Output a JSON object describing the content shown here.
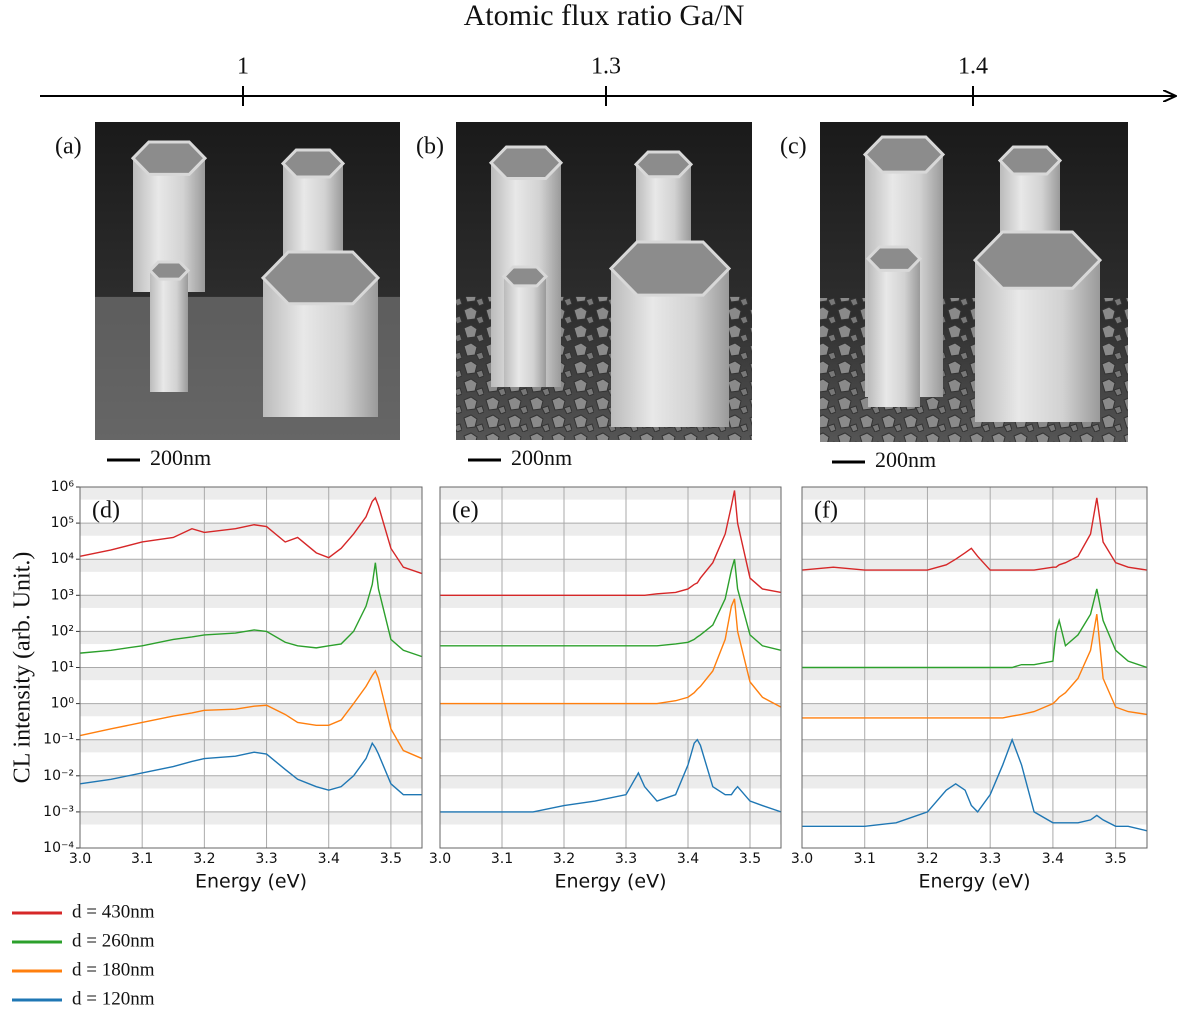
{
  "flux_axis": {
    "title": "Atomic flux ratio Ga/N",
    "ticks": [
      "1",
      "1.3",
      "1.4"
    ]
  },
  "panels": [
    {
      "label": "(a)",
      "scale": "200nm"
    },
    {
      "label": "(b)",
      "scale": "200nm"
    },
    {
      "label": "(c)",
      "scale": "200nm"
    }
  ],
  "chart_data": [
    {
      "type": "line",
      "label": "(d)",
      "xlabel": "Energy (eV)",
      "ylabel": "CL intensity (arb. Unit.)",
      "yscale": "log",
      "xlim": [
        3.0,
        3.55
      ],
      "xticks": [
        {
          "value": 3.0,
          "label": "3.0"
        },
        3.1,
        3.2,
        3.3,
        3.4,
        3.5
      ],
      "ylim": [
        0.0001,
        1000000
      ],
      "yticks": [
        {
          "value": 0.0001,
          "label": "10⁻⁴"
        },
        {
          "value": 0.001,
          "label": "10⁻³"
        },
        {
          "value": 0.01,
          "label": "10⁻²"
        },
        {
          "value": 0.1,
          "label": "10⁻¹"
        },
        {
          "value": 1,
          "label": "10⁰"
        },
        {
          "value": 10,
          "label": "10¹"
        },
        {
          "value": 100,
          "label": "10²"
        },
        {
          "value": 1000,
          "label": "10³"
        },
        {
          "value": 10000,
          "label": "10⁴"
        },
        {
          "value": 100000,
          "label": "10⁵"
        },
        {
          "value": 1000000,
          "label": "10⁶"
        }
      ],
      "ytick_labels": true,
      "grid": true,
      "x": [
        3.0,
        3.05,
        3.1,
        3.15,
        3.18,
        3.2,
        3.25,
        3.28,
        3.3,
        3.33,
        3.35,
        3.38,
        3.4,
        3.42,
        3.44,
        3.46,
        3.47,
        3.475,
        3.48,
        3.5,
        3.52,
        3.55
      ],
      "series": [
        {
          "name": "d = 430nm",
          "color": "#d62728",
          "values": [
            12000,
            18000,
            30000,
            40000,
            70000,
            55000,
            70000,
            90000,
            80000,
            30000,
            40000,
            15000,
            11000,
            20000,
            50000,
            150000,
            400000,
            500000,
            300000,
            20000,
            6000,
            4000
          ]
        },
        {
          "name": "d = 260nm",
          "color": "#2ca02c",
          "values": [
            25,
            30,
            40,
            60,
            70,
            80,
            90,
            110,
            100,
            50,
            40,
            35,
            40,
            45,
            100,
            500,
            2000,
            8000,
            1500,
            60,
            30,
            20
          ]
        },
        {
          "name": "d = 180nm",
          "color": "#ff7f0e",
          "values": [
            0.13,
            0.2,
            0.3,
            0.45,
            0.55,
            0.65,
            0.7,
            0.85,
            0.9,
            0.5,
            0.3,
            0.25,
            0.25,
            0.35,
            1,
            3,
            6,
            8,
            5,
            0.2,
            0.05,
            0.03
          ]
        },
        {
          "name": "d = 120nm",
          "color": "#1f77b4",
          "values": [
            0.006,
            0.008,
            0.012,
            0.018,
            0.025,
            0.03,
            0.035,
            0.045,
            0.04,
            0.015,
            0.008,
            0.005,
            0.004,
            0.005,
            0.01,
            0.03,
            0.08,
            0.06,
            0.04,
            0.006,
            0.003,
            0.003
          ]
        }
      ]
    },
    {
      "type": "line",
      "label": "(e)",
      "xlabel": "Energy (eV)",
      "yscale": "log",
      "xlim": [
        3.0,
        3.55
      ],
      "xticks": [
        {
          "value": 3.0,
          "label": "3.0"
        },
        3.1,
        3.2,
        3.3,
        3.4,
        3.5
      ],
      "ylim": [
        0.0001,
        1000000
      ],
      "yticks": [
        0.0001,
        0.001,
        0.01,
        0.1,
        1,
        10,
        100,
        1000,
        10000,
        100000,
        1000000
      ],
      "ytick_labels": false,
      "grid": true,
      "x": [
        3.0,
        3.05,
        3.1,
        3.15,
        3.2,
        3.25,
        3.3,
        3.31,
        3.32,
        3.33,
        3.35,
        3.38,
        3.4,
        3.41,
        3.415,
        3.42,
        3.44,
        3.46,
        3.47,
        3.475,
        3.48,
        3.5,
        3.52,
        3.55
      ],
      "series": [
        {
          "color": "#d62728",
          "values": [
            1000,
            1000,
            1000,
            1000,
            1000,
            1000,
            1000,
            1000,
            1000,
            1000,
            1100,
            1200,
            1500,
            2000,
            2200,
            3000,
            8000,
            50000,
            300000,
            800000,
            100000,
            3000,
            1500,
            1200
          ]
        },
        {
          "color": "#2ca02c",
          "values": [
            40,
            40,
            40,
            40,
            40,
            40,
            40,
            40,
            40,
            40,
            40,
            45,
            50,
            60,
            70,
            80,
            150,
            800,
            5000,
            10000,
            1500,
            80,
            40,
            30
          ]
        },
        {
          "color": "#ff7f0e",
          "values": [
            1,
            1,
            1,
            1,
            1,
            1,
            1,
            1,
            1,
            1,
            1,
            1.2,
            1.5,
            2,
            2.5,
            3,
            8,
            60,
            500,
            800,
            100,
            4,
            1.5,
            0.8
          ]
        },
        {
          "color": "#1f77b4",
          "values": [
            0.001,
            0.001,
            0.001,
            0.001,
            0.0015,
            0.002,
            0.003,
            0.006,
            0.012,
            0.005,
            0.002,
            0.003,
            0.02,
            0.08,
            0.1,
            0.07,
            0.005,
            0.003,
            0.003,
            0.004,
            0.005,
            0.002,
            0.0015,
            0.001
          ]
        }
      ]
    },
    {
      "type": "line",
      "label": "(f)",
      "xlabel": "Energy (eV)",
      "yscale": "log",
      "xlim": [
        3.0,
        3.55
      ],
      "xticks": [
        {
          "value": 3.0,
          "label": "3.0"
        },
        3.1,
        3.2,
        3.3,
        3.4,
        3.5
      ],
      "ylim": [
        0.0001,
        1000000
      ],
      "yticks": [
        0.0001,
        0.001,
        0.01,
        0.1,
        1,
        10,
        100,
        1000,
        10000,
        100000,
        1000000
      ],
      "ytick_labels": false,
      "grid": true,
      "x": [
        3.0,
        3.05,
        3.1,
        3.15,
        3.2,
        3.23,
        3.245,
        3.26,
        3.27,
        3.28,
        3.3,
        3.32,
        3.335,
        3.35,
        3.37,
        3.4,
        3.405,
        3.41,
        3.42,
        3.44,
        3.46,
        3.47,
        3.48,
        3.5,
        3.52,
        3.55
      ],
      "series": [
        {
          "color": "#d62728",
          "values": [
            5000,
            6000,
            5000,
            5000,
            5000,
            7000,
            10000,
            15000,
            20000,
            12000,
            5000,
            5000,
            5000,
            5000,
            5000,
            6000,
            6000,
            7000,
            8000,
            12000,
            50000,
            500000,
            30000,
            8000,
            6000,
            5000
          ]
        },
        {
          "color": "#2ca02c",
          "values": [
            10,
            10,
            10,
            10,
            10,
            10,
            10,
            10,
            10,
            10,
            10,
            10,
            10,
            12,
            12,
            15,
            100,
            200,
            40,
            80,
            300,
            1500,
            200,
            30,
            15,
            10
          ]
        },
        {
          "color": "#ff7f0e",
          "values": [
            0.4,
            0.4,
            0.4,
            0.4,
            0.4,
            0.4,
            0.4,
            0.4,
            0.4,
            0.4,
            0.4,
            0.4,
            0.45,
            0.5,
            0.6,
            1,
            1.2,
            1.5,
            2,
            5,
            30,
            300,
            5,
            0.8,
            0.6,
            0.5
          ]
        },
        {
          "color": "#1f77b4",
          "values": [
            0.0004,
            0.0004,
            0.0004,
            0.0005,
            0.001,
            0.004,
            0.006,
            0.004,
            0.0015,
            0.001,
            0.003,
            0.02,
            0.1,
            0.02,
            0.001,
            0.0005,
            0.0005,
            0.0005,
            0.0005,
            0.0005,
            0.0006,
            0.0008,
            0.0006,
            0.0004,
            0.0004,
            0.0003
          ]
        }
      ]
    }
  ]
}
